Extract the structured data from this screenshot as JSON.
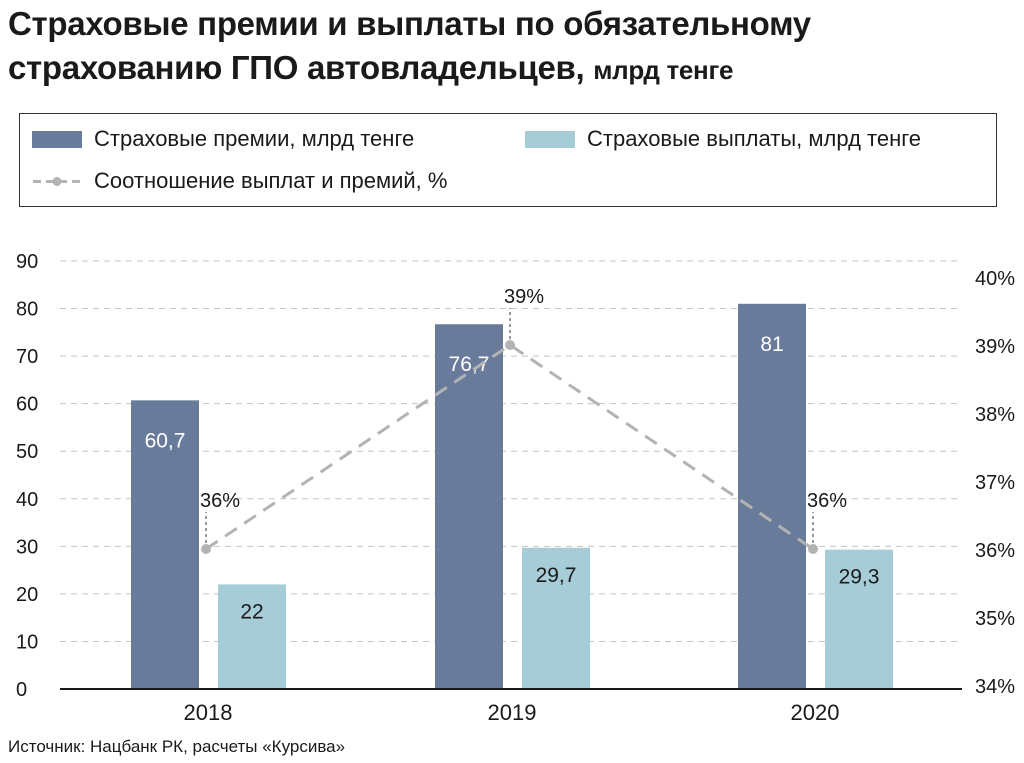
{
  "title": {
    "main": "Страховые премии и выплаты по обязательному страхованию ГПО автовладельцев,",
    "unit": "млрд тенге"
  },
  "legend": {
    "premiums": "Страховые премии, млрд тенге",
    "payouts": "Страховые выплаты, млрд тенге",
    "ratio": "Соотношение выплат и премий, %"
  },
  "source": "Источник: Нацбанк РК, расчеты «Курсива»",
  "colors": {
    "premiums": "#697b9b",
    "payouts": "#a6ccd7",
    "ratio": "#b3b3b3"
  },
  "chart_data": {
    "type": "bar",
    "categories": [
      "2018",
      "2019",
      "2020"
    ],
    "series": [
      {
        "name": "Страховые премии, млрд тенге",
        "values": [
          60.7,
          76.7,
          81
        ],
        "labels": [
          "60,7",
          "76,7",
          "81"
        ]
      },
      {
        "name": "Страховые выплаты, млрд тенге",
        "values": [
          22,
          29.7,
          29.3
        ],
        "labels": [
          "22",
          "29,7",
          "29,3"
        ]
      },
      {
        "name": "Соотношение выплат и премий, %",
        "type": "line",
        "axis": "right",
        "values": [
          36,
          39,
          36
        ],
        "labels": [
          "36%",
          "39%",
          "36%"
        ]
      }
    ],
    "ylim_left": [
      0,
      90
    ],
    "left_ticks": [
      "0",
      "10",
      "20",
      "30",
      "40",
      "50",
      "60",
      "70",
      "80",
      "90"
    ],
    "ylim_right": [
      34,
      40
    ],
    "right_ticks": [
      "34%",
      "35%",
      "36%",
      "37%",
      "38%",
      "39%",
      "40%"
    ],
    "grid": true,
    "legend_position": "top"
  }
}
